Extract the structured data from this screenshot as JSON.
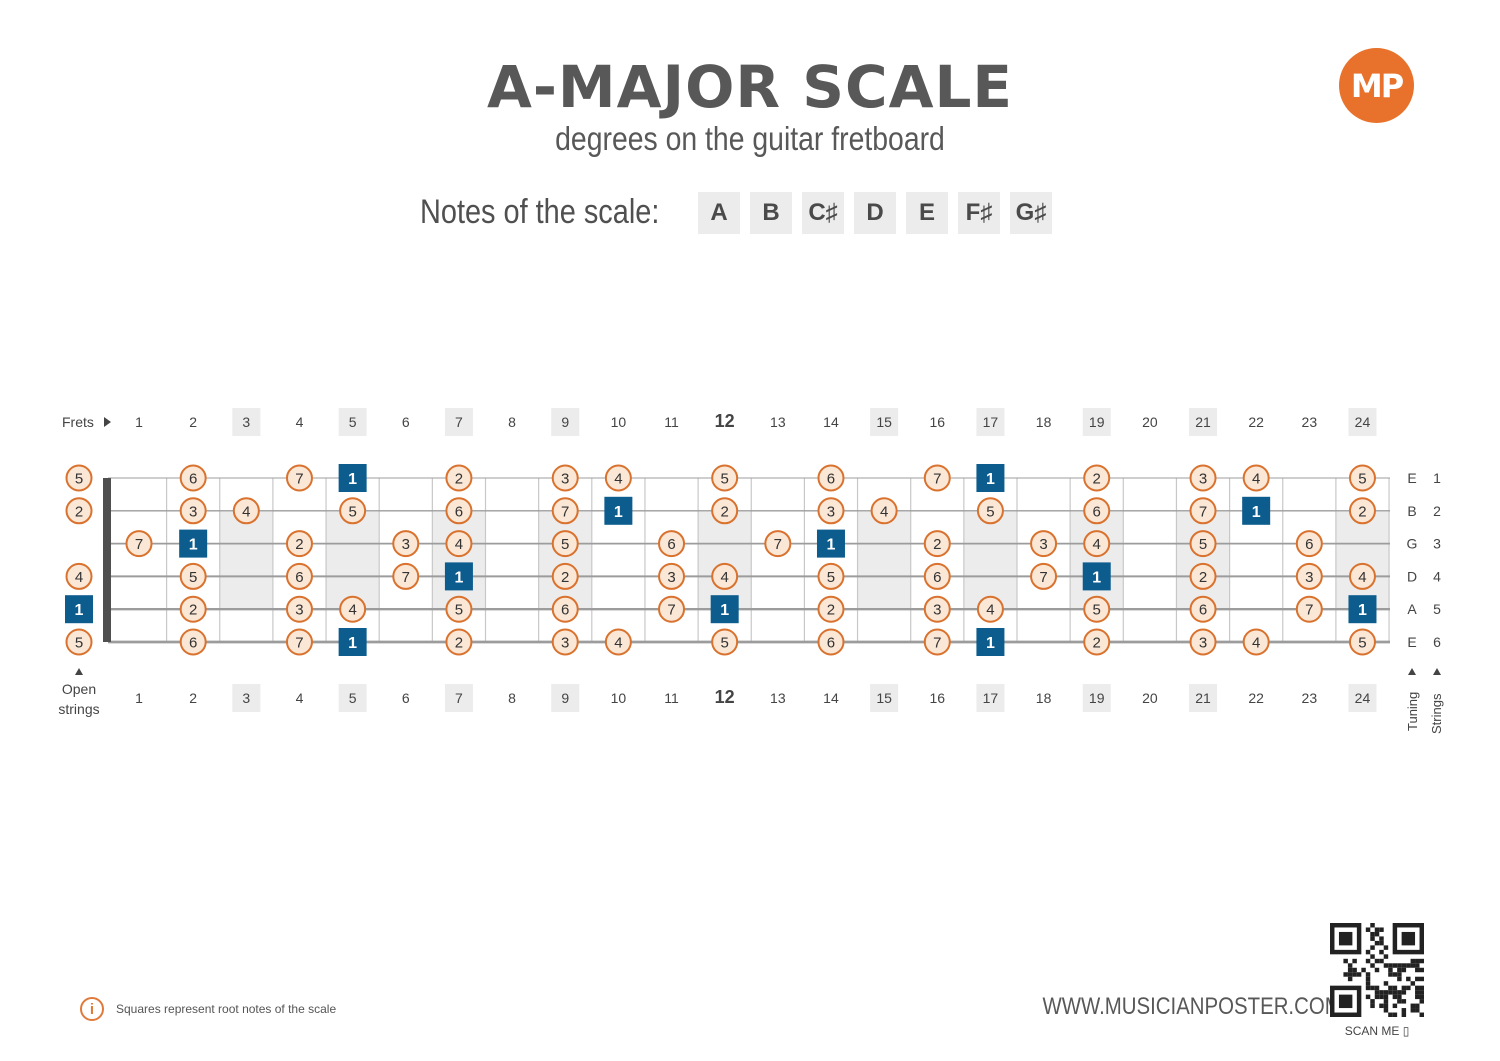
{
  "header": {
    "title": "A-MAJOR SCALE",
    "subtitle": "degrees on the guitar fretboard",
    "logo": "MP"
  },
  "scale_notes": {
    "label": "Notes of the scale:",
    "notes": [
      "A",
      "B",
      "C♯",
      "D",
      "E",
      "F♯",
      "G♯"
    ]
  },
  "fretboard": {
    "frets_label": "Frets",
    "open_label_line1": "Open",
    "open_label_line2": "strings",
    "tuning_label": "Tuning",
    "strings_label": "Strings",
    "fret_count": 24,
    "highlighted_frets": [
      3,
      5,
      7,
      9,
      15,
      17,
      19,
      21,
      24
    ],
    "bold_fret": 12,
    "inlay_frets": [
      3,
      5,
      7,
      9,
      12,
      15,
      17,
      19,
      21,
      24
    ],
    "strings": [
      {
        "tuning": "E",
        "number": "1",
        "degrees": [
          "5",
          "",
          "6",
          "",
          "7",
          "1",
          "",
          "2",
          "",
          "3",
          "4",
          "",
          "5",
          "",
          "6",
          "",
          "7",
          "1",
          "",
          "2",
          "",
          "3",
          "4",
          "",
          "5"
        ]
      },
      {
        "tuning": "B",
        "number": "2",
        "degrees": [
          "2",
          "",
          "3",
          "4",
          "",
          "5",
          "",
          "6",
          "",
          "7",
          "1",
          "",
          "2",
          "",
          "3",
          "4",
          "",
          "5",
          "",
          "6",
          "",
          "7",
          "1",
          "",
          "2"
        ]
      },
      {
        "tuning": "G",
        "number": "3",
        "degrees": [
          "",
          "7",
          "1",
          "",
          "2",
          "",
          "3",
          "4",
          "",
          "5",
          "",
          "6",
          "",
          "7",
          "1",
          "",
          "2",
          "",
          "3",
          "4",
          "",
          "5",
          "",
          "6",
          ""
        ]
      },
      {
        "tuning": "D",
        "number": "4",
        "degrees": [
          "4",
          "",
          "5",
          "",
          "6",
          "",
          "7",
          "1",
          "",
          "2",
          "",
          "3",
          "4",
          "",
          "5",
          "",
          "6",
          "",
          "7",
          "1",
          "",
          "2",
          "",
          "3",
          "4"
        ]
      },
      {
        "tuning": "A",
        "number": "5",
        "degrees": [
          "1",
          "",
          "2",
          "",
          "3",
          "4",
          "",
          "5",
          "",
          "6",
          "",
          "7",
          "1",
          "",
          "2",
          "",
          "3",
          "4",
          "",
          "5",
          "",
          "6",
          "",
          "7",
          "1"
        ]
      },
      {
        "tuning": "E",
        "number": "6",
        "degrees": [
          "5",
          "",
          "6",
          "",
          "7",
          "1",
          "",
          "2",
          "",
          "3",
          "4",
          "",
          "5",
          "",
          "6",
          "",
          "7",
          "1",
          "",
          "2",
          "",
          "3",
          "4",
          "",
          "5"
        ]
      }
    ],
    "colors": {
      "root_fill": "#0c5c8e",
      "degree_fill": "#fbe7d6",
      "degree_stroke": "#d9722e",
      "inlay": "#ececec",
      "string": "#9c9c9c",
      "nut": "#4f4f4f"
    }
  },
  "footer": {
    "info_icon": "info-icon",
    "note": "Squares represent root notes of the scale",
    "website": "WWW.MUSICIANPOSTER.COM",
    "scan": "SCAN ME ▯"
  }
}
